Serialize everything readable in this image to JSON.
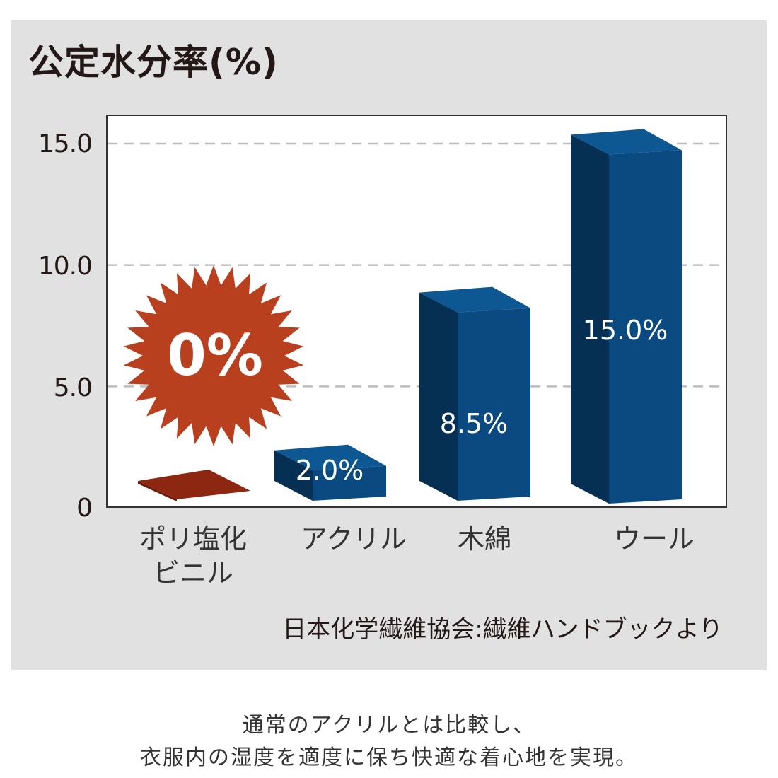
{
  "title": "公定水分率(%)",
  "source": "日本化学繊維協会:繊維ハンドブックより",
  "caption_lines": [
    "通常のアクリルとは比較し、",
    "衣服内の湿度を適度に保ち快適な着心地を実現。"
  ],
  "colors": {
    "panel": "#e1e1e1",
    "bar_front": "#0b4a80",
    "bar_side": "#062f54",
    "bar_top": "#0d5793",
    "pvc": "#8e2712",
    "burst": "#b8401e"
  },
  "chart_data": {
    "type": "bar",
    "title": "公定水分率(%)",
    "categories": [
      "ポリ塩化\nビニル",
      "アクリル",
      "木綿",
      "ウール"
    ],
    "values": [
      0,
      2.0,
      8.5,
      15.0
    ],
    "data_labels": [
      "0%",
      "2.0%",
      "8.5%",
      "15.0%"
    ],
    "y_ticks": [
      "0",
      "5.0",
      "10.0",
      "15.0"
    ],
    "ylim": [
      0,
      15
    ],
    "grid": true,
    "xlabel": "",
    "ylabel": ""
  }
}
